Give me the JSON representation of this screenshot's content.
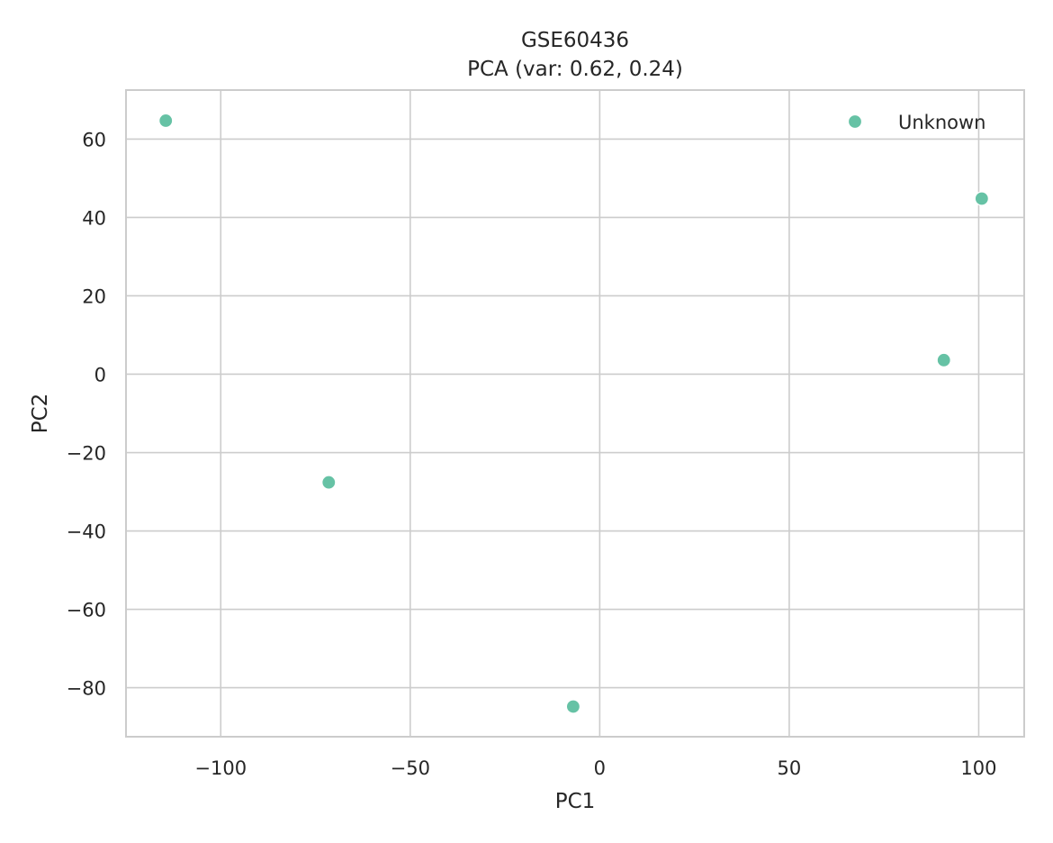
{
  "chart_data": {
    "type": "scatter",
    "title": "GSE60436",
    "subtitle": "PCA (var: 0.62, 0.24)",
    "xlabel": "PC1",
    "ylabel": "PC2",
    "xlim": [
      -125,
      112
    ],
    "ylim": [
      -92.5,
      72.5
    ],
    "xticks": [
      -100,
      -50,
      0,
      50,
      100
    ],
    "xtick_labels": [
      "−100",
      "−50",
      "0",
      "50",
      "100"
    ],
    "yticks": [
      60,
      40,
      20,
      0,
      -20,
      -40,
      -60,
      -80
    ],
    "ytick_labels": [
      "60",
      "40",
      "20",
      "0",
      "−20",
      "−40",
      "−60",
      "−80"
    ],
    "grid": true,
    "legend_position": "top-right",
    "series": [
      {
        "name": "Unknown",
        "color": "#66c2a5",
        "points": [
          {
            "x": -114.5,
            "y": 64.7
          },
          {
            "x": -71.5,
            "y": -27.6
          },
          {
            "x": -7.0,
            "y": -84.8
          },
          {
            "x": 90.8,
            "y": 3.6
          },
          {
            "x": 100.8,
            "y": 44.8
          }
        ]
      }
    ]
  }
}
